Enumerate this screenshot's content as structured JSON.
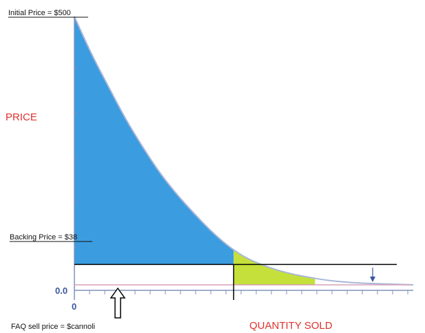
{
  "chart_data": {
    "type": "area",
    "title": "",
    "ylabel": "PRICE",
    "xlabel": "QUANTITY SOLD",
    "annotations": {
      "initial_price": "Initial Price = $500",
      "backing_price": "Backing Price = $38",
      "faq_sell_price": "FAQ sell price = $cannoli"
    },
    "y_tick_labels": [
      "0.0"
    ],
    "x_tick_labels": [
      "0"
    ],
    "ylim": [
      0,
      500
    ],
    "xlim": [
      0,
      1
    ],
    "curve": {
      "x": [
        0,
        0.05,
        0.1,
        0.15,
        0.2,
        0.25,
        0.3,
        0.35,
        0.4,
        0.45,
        0.5,
        0.55,
        0.6,
        0.65,
        0.7,
        0.75,
        0.8,
        0.85,
        0.9,
        0.95,
        1.0
      ],
      "y": [
        500,
        430,
        370,
        310,
        258,
        210,
        170,
        135,
        102,
        74,
        52,
        38,
        27,
        19,
        13,
        8,
        5,
        3,
        2,
        1,
        0
      ]
    },
    "backing_price_value": 38,
    "initial_price_value": 500,
    "regions": [
      {
        "name": "above-backing",
        "color": "#3b9ce0",
        "x_range": [
          0,
          0.47
        ]
      },
      {
        "name": "below-backing",
        "color": "#c5e03a",
        "x_range": [
          0.47,
          0.71
        ]
      }
    ],
    "colors": {
      "curve": "#a9b6d8",
      "axis": "#8090b8",
      "backing_line": "#000000",
      "faq_line": "#d7a0b8",
      "label_red": "#e0312d",
      "tick_blue": "#3a55a0"
    }
  }
}
